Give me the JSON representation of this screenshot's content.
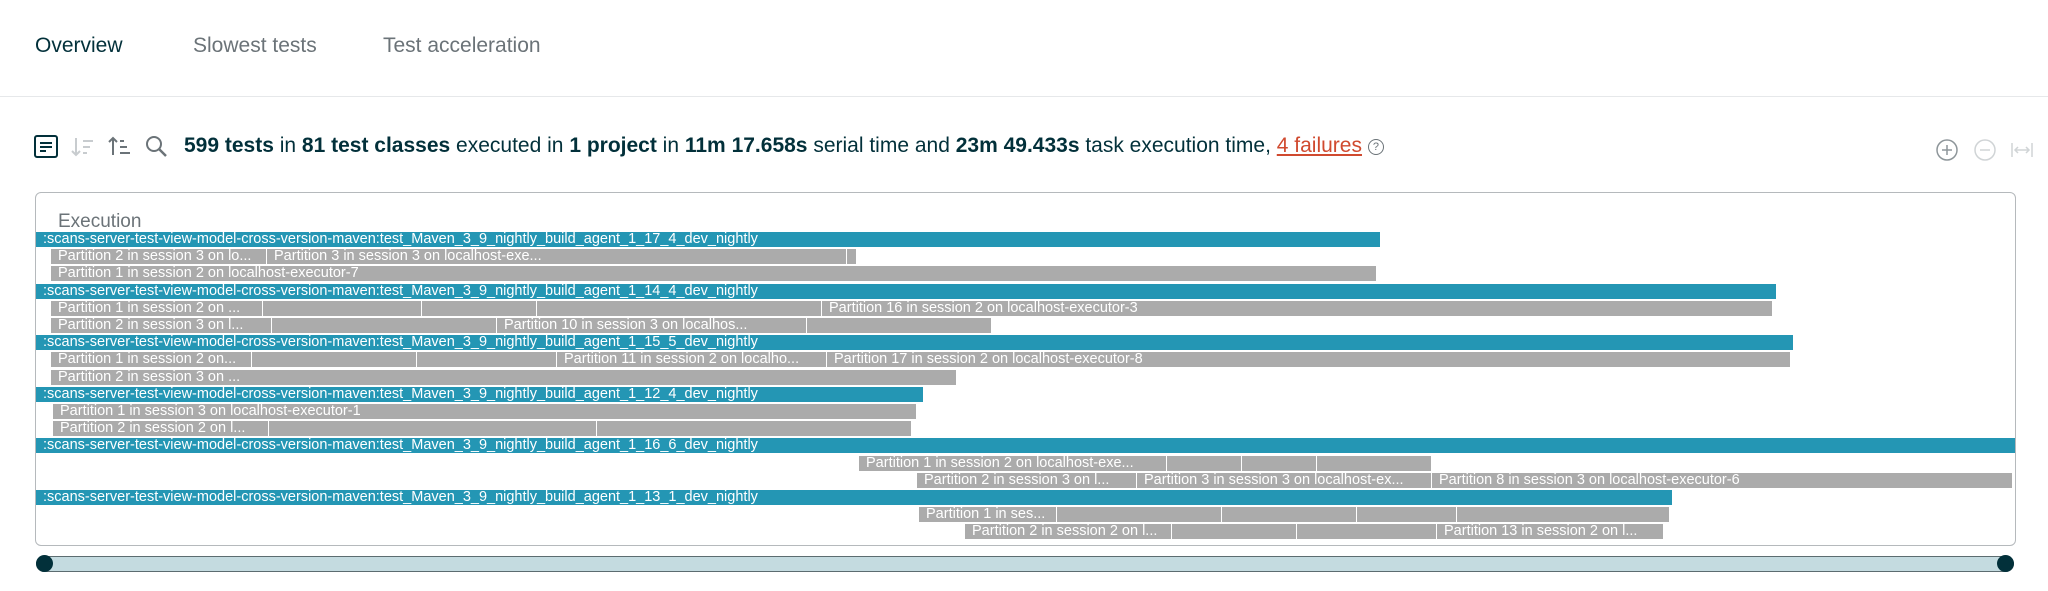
{
  "tabs": [
    {
      "label": "Overview",
      "active": true
    },
    {
      "label": "Slowest tests",
      "active": false
    },
    {
      "label": "Test acceleration",
      "active": false
    }
  ],
  "toolbar": {
    "icons": [
      "list-view-icon",
      "sort-descending-icon",
      "sort-ascending-icon",
      "search-icon"
    ]
  },
  "summary": {
    "tests": "599 tests",
    "in1": " in ",
    "classes": "81 test classes",
    "exec": " executed in ",
    "projects": "1 project",
    "in2": " in ",
    "serial": "11m 17.658s",
    "serial_text": " serial time and ",
    "task": "23m 49.433s",
    "task_text": " task execution time, ",
    "failures": "4 failures",
    "help": "?"
  },
  "zoom": {
    "icons": [
      "zoom-in-icon",
      "zoom-out-icon",
      "fit-width-icon"
    ]
  },
  "timeline": {
    "title": "Execution",
    "rows": [
      [
        {
          "kind": "proj",
          "label": ":scans-server-test-view-model-cross-version-maven:test_Maven_3_9_nightly_build_agent_1_17_4_dev_nightly",
          "start": 0,
          "end": 1344
        }
      ],
      [
        {
          "kind": "part",
          "label": "Partition 2 in session 3 on lo...",
          "start": 14,
          "end": 230
        },
        {
          "kind": "part",
          "label": "Partition 3 in session 3 on localhost-exe...",
          "start": 230,
          "end": 810
        },
        {
          "kind": "part",
          "label": "",
          "start": 810,
          "end": 820
        }
      ],
      [
        {
          "kind": "part",
          "label": "Partition 1 in session 2 on localhost-executor-7",
          "start": 14,
          "end": 1340
        }
      ],
      [
        {
          "kind": "proj",
          "label": ":scans-server-test-view-model-cross-version-maven:test_Maven_3_9_nightly_build_agent_1_14_4_dev_nightly",
          "start": 0,
          "end": 1740
        }
      ],
      [
        {
          "kind": "part",
          "label": "Partition 1 in session 2 on ...",
          "start": 14,
          "end": 226
        },
        {
          "kind": "part",
          "label": "",
          "start": 226,
          "end": 385
        },
        {
          "kind": "part",
          "label": "",
          "start": 385,
          "end": 500
        },
        {
          "kind": "part",
          "label": "",
          "start": 500,
          "end": 785
        },
        {
          "kind": "part",
          "label": "Partition 16 in session 2 on localhost-executor-3",
          "start": 785,
          "end": 1736
        }
      ],
      [
        {
          "kind": "part",
          "label": "Partition 2 in session 3 on l...",
          "start": 14,
          "end": 235
        },
        {
          "kind": "part",
          "label": "",
          "start": 235,
          "end": 460
        },
        {
          "kind": "part",
          "label": "Partition 10 in session 3 on localhos...",
          "start": 460,
          "end": 770
        },
        {
          "kind": "part",
          "label": "",
          "start": 770,
          "end": 955
        }
      ],
      [
        {
          "kind": "proj",
          "label": ":scans-server-test-view-model-cross-version-maven:test_Maven_3_9_nightly_build_agent_1_15_5_dev_nightly",
          "start": 0,
          "end": 1757
        }
      ],
      [
        {
          "kind": "part",
          "label": "Partition 1 in session 2 on...",
          "start": 14,
          "end": 215
        },
        {
          "kind": "part",
          "label": "",
          "start": 215,
          "end": 380
        },
        {
          "kind": "part",
          "label": "",
          "start": 380,
          "end": 520
        },
        {
          "kind": "part",
          "label": "Partition 11 in session 2 on localho...",
          "start": 520,
          "end": 790
        },
        {
          "kind": "part",
          "label": "Partition 17 in session 2 on localhost-executor-8",
          "start": 790,
          "end": 1754
        }
      ],
      [
        {
          "kind": "part",
          "label": "Partition 2 in session 3 on ...",
          "start": 14,
          "end": 920
        }
      ],
      [
        {
          "kind": "proj",
          "label": ":scans-server-test-view-model-cross-version-maven:test_Maven_3_9_nightly_build_agent_1_12_4_dev_nightly",
          "start": 0,
          "end": 887
        }
      ],
      [
        {
          "kind": "part",
          "label": "Partition 1 in session 3 on localhost-executor-1",
          "start": 16,
          "end": 880
        }
      ],
      [
        {
          "kind": "part",
          "label": "Partition 2 in session 2 on l...",
          "start": 16,
          "end": 232
        },
        {
          "kind": "part",
          "label": "",
          "start": 232,
          "end": 560
        },
        {
          "kind": "part",
          "label": "",
          "start": 560,
          "end": 875
        }
      ],
      [
        {
          "kind": "proj",
          "label": ":scans-server-test-view-model-cross-version-maven:test_Maven_3_9_nightly_build_agent_1_16_6_dev_nightly",
          "start": 0,
          "end": 1979
        }
      ],
      [
        {
          "kind": "part",
          "label": "Partition 1 in session 2 on localhost-exe...",
          "start": 822,
          "end": 1130
        },
        {
          "kind": "part",
          "label": "",
          "start": 1130,
          "end": 1205
        },
        {
          "kind": "part",
          "label": "",
          "start": 1205,
          "end": 1280
        },
        {
          "kind": "part",
          "label": "",
          "start": 1280,
          "end": 1395
        }
      ],
      [
        {
          "kind": "part",
          "label": "Partition 2 in session 3 on l...",
          "start": 880,
          "end": 1100
        },
        {
          "kind": "part",
          "label": "Partition 3 in session 3 on localhost-ex...",
          "start": 1100,
          "end": 1395
        },
        {
          "kind": "part",
          "label": "Partition 8 in session 3 on localhost-executor-6",
          "start": 1395,
          "end": 1976
        }
      ],
      [
        {
          "kind": "proj",
          "label": ":scans-server-test-view-model-cross-version-maven:test_Maven_3_9_nightly_build_agent_1_13_1_dev_nightly",
          "start": 0,
          "end": 1636
        }
      ],
      [
        {
          "kind": "part",
          "label": "Partition 1 in ses...",
          "start": 882,
          "end": 1020
        },
        {
          "kind": "part",
          "label": "",
          "start": 1020,
          "end": 1185
        },
        {
          "kind": "part",
          "label": "",
          "start": 1185,
          "end": 1320
        },
        {
          "kind": "part",
          "label": "",
          "start": 1320,
          "end": 1420
        },
        {
          "kind": "part",
          "label": "",
          "start": 1420,
          "end": 1633
        }
      ],
      [
        {
          "kind": "part",
          "label": "Partition 2 in session 2 on l...",
          "start": 928,
          "end": 1135
        },
        {
          "kind": "part",
          "label": "",
          "start": 1135,
          "end": 1260
        },
        {
          "kind": "part",
          "label": "",
          "start": 1260,
          "end": 1400
        },
        {
          "kind": "part",
          "label": "Partition 13 in session 2 on l...",
          "start": 1400,
          "end": 1627
        }
      ]
    ]
  }
}
